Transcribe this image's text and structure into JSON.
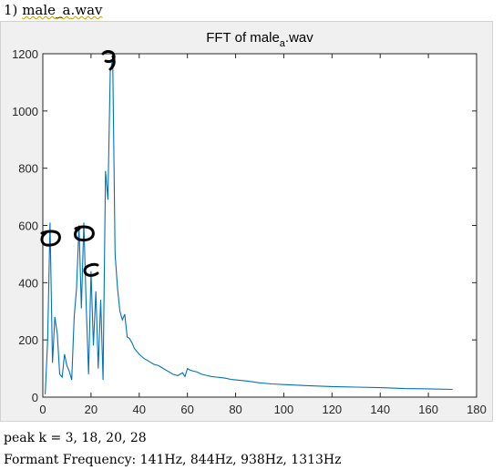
{
  "heading": {
    "number": "1)",
    "prefix": "male",
    "sub": "_a",
    "ext": ".wav"
  },
  "chart_data": {
    "type": "line",
    "title": {
      "main": "FFT of male",
      "sub": "a",
      "tail": ".wav"
    },
    "xlabel": "",
    "ylabel": "",
    "xlim": [
      0,
      180
    ],
    "ylim": [
      0,
      1200
    ],
    "xticks": [
      0,
      20,
      40,
      60,
      80,
      100,
      120,
      140,
      160,
      180
    ],
    "yticks": [
      0,
      200,
      400,
      600,
      800,
      1000,
      1200
    ],
    "grid": false,
    "line_color": "#0072bd",
    "series": [
      {
        "x": [
          1,
          2,
          3,
          4,
          5,
          6,
          7,
          8,
          9,
          10,
          11,
          12,
          13,
          14,
          15,
          16,
          17,
          18,
          19,
          20,
          21,
          22,
          23,
          24,
          25,
          26,
          27,
          28,
          29,
          30,
          31,
          32,
          33,
          34,
          35,
          36,
          37,
          38,
          40,
          42,
          44,
          46,
          48,
          50,
          52,
          54,
          56,
          58,
          59,
          60,
          61,
          62,
          64,
          66,
          68,
          70,
          72,
          74,
          76,
          78,
          80,
          85,
          90,
          95,
          100,
          110,
          120,
          130,
          140,
          150,
          160,
          170
        ],
        "values": [
          10,
          200,
          610,
          120,
          280,
          220,
          80,
          70,
          150,
          110,
          90,
          60,
          280,
          380,
          600,
          310,
          610,
          320,
          80,
          440,
          180,
          370,
          100,
          340,
          60,
          790,
          690,
          1140,
          1180,
          500,
          380,
          300,
          270,
          290,
          210,
          205,
          190,
          170,
          150,
          135,
          125,
          115,
          110,
          100,
          90,
          80,
          75,
          85,
          72,
          100,
          95,
          92,
          88,
          80,
          76,
          72,
          70,
          68,
          66,
          62,
          60,
          56,
          50,
          46,
          44,
          40,
          37,
          35,
          33,
          30,
          29,
          27
        ]
      }
    ]
  }
}
